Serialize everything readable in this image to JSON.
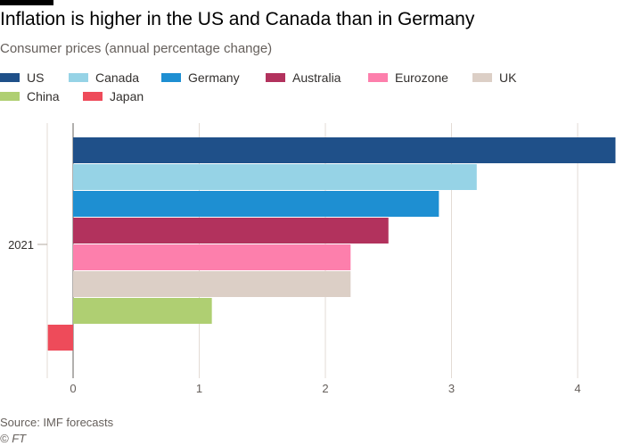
{
  "title": "Inflation is higher in the US and Canada than in Germany",
  "subtitle": "Consumer prices (annual percentage change)",
  "source": "Source: IMF forecasts",
  "credit": "© FT",
  "legend": [
    {
      "name": "US",
      "color": "#1f5089"
    },
    {
      "name": "Canada",
      "color": "#96d3e6"
    },
    {
      "name": "Germany",
      "color": "#1e8fd2"
    },
    {
      "name": "Australia",
      "color": "#b2325d"
    },
    {
      "name": "Eurozone",
      "color": "#fd7fac"
    },
    {
      "name": "UK",
      "color": "#dccfc6"
    },
    {
      "name": "China",
      "color": "#afcf72"
    },
    {
      "name": "Japan",
      "color": "#ee4b5a"
    }
  ],
  "chart_data": {
    "type": "bar",
    "orientation": "horizontal",
    "categories": [
      "2021"
    ],
    "series": [
      {
        "name": "US",
        "values": [
          4.3
        ],
        "color": "#1f5089"
      },
      {
        "name": "Canada",
        "values": [
          3.2
        ],
        "color": "#96d3e6"
      },
      {
        "name": "Germany",
        "values": [
          2.9
        ],
        "color": "#1e8fd2"
      },
      {
        "name": "Australia",
        "values": [
          2.5
        ],
        "color": "#b2325d"
      },
      {
        "name": "Eurozone",
        "values": [
          2.2
        ],
        "color": "#fd7fac"
      },
      {
        "name": "UK",
        "values": [
          2.2
        ],
        "color": "#dccfc6"
      },
      {
        "name": "China",
        "values": [
          1.1
        ],
        "color": "#afcf72"
      },
      {
        "name": "Japan",
        "values": [
          -0.2
        ],
        "color": "#ee4b5a"
      }
    ],
    "xticks": [
      "0",
      "1",
      "2",
      "3",
      "4"
    ],
    "xlim": [
      -0.2,
      4.3
    ],
    "grid": true,
    "legend_position": "top"
  }
}
